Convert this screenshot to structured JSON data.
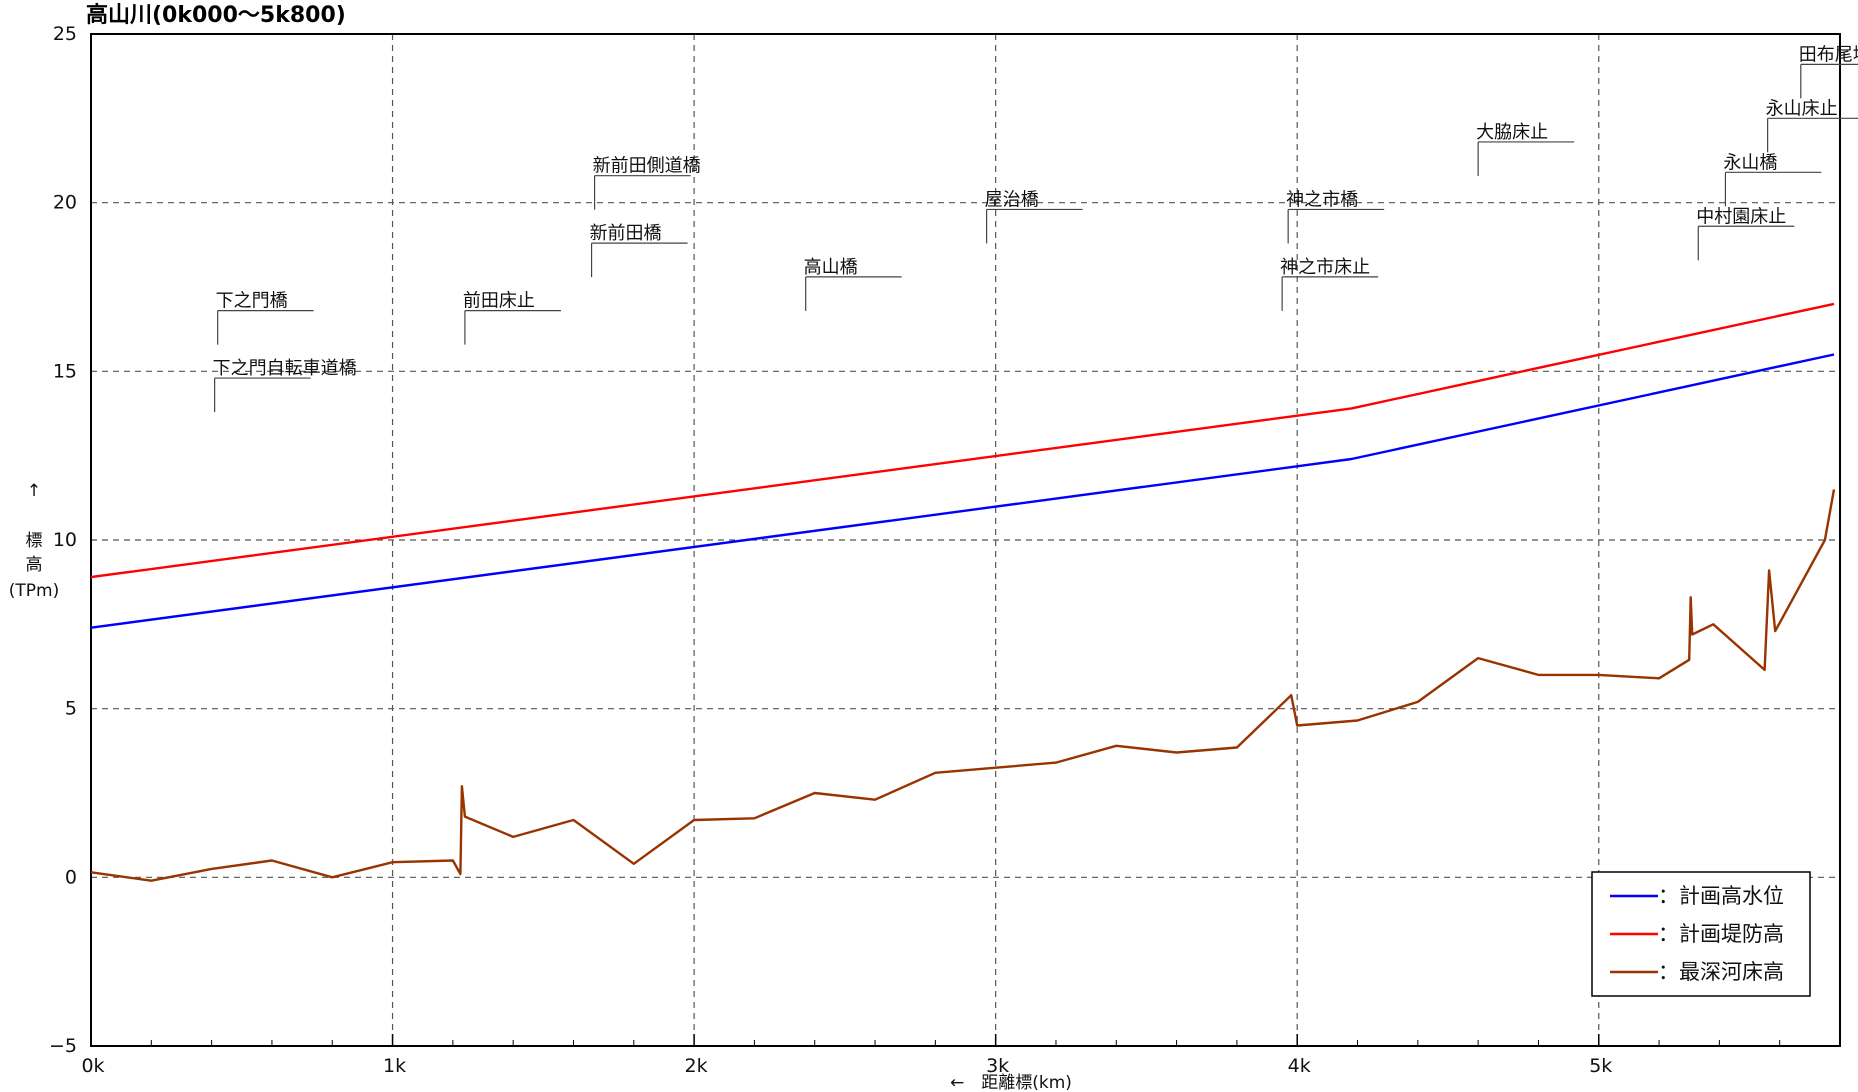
{
  "chart_data": {
    "type": "line",
    "title": "高山川(0k000～5k800)",
    "ylabel": [
      "↑",
      "標",
      "高",
      "(TPm)"
    ],
    "xlabel": "←　距離標(km)",
    "xlim": [
      0,
      5.8
    ],
    "ylim": [
      -5,
      25
    ],
    "grid": true,
    "legend_position": "bottom-right",
    "x_ticks": [
      {
        "x": 0,
        "label": "0k"
      },
      {
        "x": 1,
        "label": "1k"
      },
      {
        "x": 2,
        "label": "2k"
      },
      {
        "x": 3,
        "label": "3k"
      },
      {
        "x": 4,
        "label": "4k"
      },
      {
        "x": 5,
        "label": "5k"
      }
    ],
    "y_ticks": [
      {
        "y": 25,
        "label": "25"
      },
      {
        "y": 20,
        "label": "20"
      },
      {
        "y": 15,
        "label": "15"
      },
      {
        "y": 10,
        "label": "10"
      },
      {
        "y": 5,
        "label": "5"
      },
      {
        "y": 0,
        "label": "0"
      },
      {
        "y": -5,
        "label": "−5"
      }
    ],
    "series": [
      {
        "name": "：計画高水位",
        "color": "#0000ff",
        "points": [
          [
            0,
            7.4
          ],
          [
            4.18,
            12.4
          ],
          [
            5.78,
            15.5
          ]
        ]
      },
      {
        "name": "：計画堤防高",
        "color": "#ff0000",
        "points": [
          [
            0,
            8.9
          ],
          [
            4.18,
            13.9
          ],
          [
            5.78,
            17.0
          ]
        ]
      },
      {
        "name": "：最深河床高",
        "color": "#993300",
        "points": [
          [
            0,
            0.15
          ],
          [
            0.2,
            -0.1
          ],
          [
            0.4,
            0.25
          ],
          [
            0.6,
            0.5
          ],
          [
            0.8,
            0.0
          ],
          [
            1.0,
            0.45
          ],
          [
            1.2,
            0.5
          ],
          [
            1.225,
            0.1
          ],
          [
            1.23,
            2.7
          ],
          [
            1.24,
            1.8
          ],
          [
            1.4,
            1.2
          ],
          [
            1.6,
            1.7
          ],
          [
            1.8,
            0.4
          ],
          [
            2.0,
            1.7
          ],
          [
            2.2,
            1.75
          ],
          [
            2.4,
            2.5
          ],
          [
            2.6,
            2.3
          ],
          [
            2.8,
            3.1
          ],
          [
            3.0,
            3.25
          ],
          [
            3.2,
            3.4
          ],
          [
            3.4,
            3.9
          ],
          [
            3.6,
            3.7
          ],
          [
            3.8,
            3.85
          ],
          [
            3.98,
            5.4
          ],
          [
            4.0,
            4.5
          ],
          [
            4.2,
            4.65
          ],
          [
            4.4,
            5.2
          ],
          [
            4.6,
            6.5
          ],
          [
            4.8,
            6.0
          ],
          [
            5.0,
            6.0
          ],
          [
            5.2,
            5.9
          ],
          [
            5.3,
            6.45
          ],
          [
            5.305,
            8.3
          ],
          [
            5.31,
            7.2
          ],
          [
            5.38,
            7.5
          ],
          [
            5.55,
            6.15
          ],
          [
            5.565,
            9.1
          ],
          [
            5.585,
            7.3
          ],
          [
            5.75,
            10.0
          ],
          [
            5.78,
            11.5
          ]
        ]
      }
    ],
    "annotations": [
      {
        "label": "下之門橋",
        "x": 0.42,
        "y": 16.8
      },
      {
        "label": "下之門自転車道橋",
        "x": 0.41,
        "y": 14.8
      },
      {
        "label": "前田床止",
        "x": 1.24,
        "y": 16.8
      },
      {
        "label": "新前田側道橋",
        "x": 1.67,
        "y": 20.8
      },
      {
        "label": "新前田橋",
        "x": 1.66,
        "y": 18.8
      },
      {
        "label": "高山橋",
        "x": 2.37,
        "y": 17.8
      },
      {
        "label": "屋治橋",
        "x": 2.97,
        "y": 19.8
      },
      {
        "label": "神之市橋",
        "x": 3.97,
        "y": 19.8
      },
      {
        "label": "神之市床止",
        "x": 3.95,
        "y": 17.8
      },
      {
        "label": "大脇床止",
        "x": 4.6,
        "y": 21.8
      },
      {
        "label": "中村園床止",
        "x": 5.33,
        "y": 19.3
      },
      {
        "label": "永山橋",
        "x": 5.42,
        "y": 20.9
      },
      {
        "label": "永山床止",
        "x": 5.56,
        "y": 22.5
      },
      {
        "label": "田布尾堰",
        "x": 5.67,
        "y": 24.1
      }
    ]
  }
}
